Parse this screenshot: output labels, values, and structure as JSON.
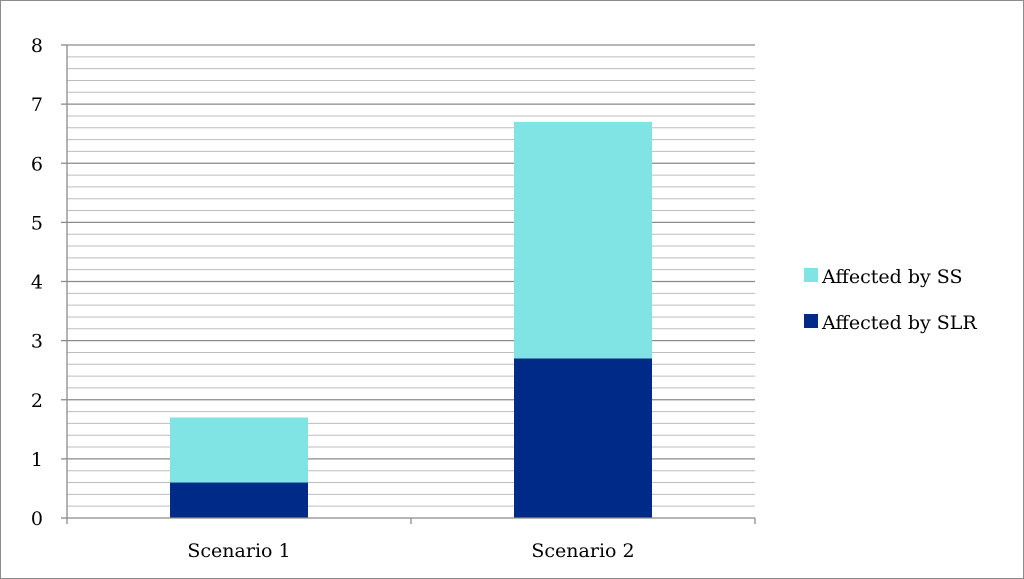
{
  "chart_data": {
    "type": "bar",
    "stacked": true,
    "categories": [
      "Scenario 1",
      "Scenario 2"
    ],
    "series": [
      {
        "name": "Affected by SLR",
        "values": [
          0.6,
          2.7
        ],
        "color": "#002a87"
      },
      {
        "name": "Affected by SS",
        "values": [
          1.1,
          4.0
        ],
        "color": "#80e3e4"
      }
    ],
    "title": "",
    "xlabel": "",
    "ylabel": "",
    "ylim": [
      0,
      8
    ],
    "y_ticks": [
      "0",
      "1",
      "2",
      "3",
      "4",
      "5",
      "6",
      "7",
      "8"
    ],
    "major_step": 1,
    "minor_step": 0.2,
    "grid": true,
    "legend": {
      "position": "right",
      "entries": [
        "Affected by SS",
        "Affected by SLR"
      ]
    }
  }
}
